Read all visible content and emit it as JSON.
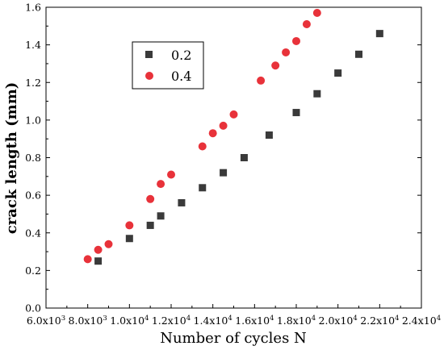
{
  "chart_data": {
    "type": "scatter",
    "xlabel": "Number of cycles N",
    "ylabel": "crack length (mm)",
    "xlim": [
      6000,
      24000
    ],
    "ylim": [
      0,
      1.6
    ],
    "xticks": [
      6000,
      8000,
      10000,
      12000,
      14000,
      16000,
      18000,
      20000,
      22000,
      24000
    ],
    "xtick_labels": [
      {
        "mantissa": "6.0x10",
        "exp": "3"
      },
      {
        "mantissa": "8.0x10",
        "exp": "3"
      },
      {
        "mantissa": "1.0x10",
        "exp": "4"
      },
      {
        "mantissa": "1.2x10",
        "exp": "4"
      },
      {
        "mantissa": "1.4x10",
        "exp": "4"
      },
      {
        "mantissa": "1.6x10",
        "exp": "4"
      },
      {
        "mantissa": "1.8x10",
        "exp": "4"
      },
      {
        "mantissa": "2.0x10",
        "exp": "4"
      },
      {
        "mantissa": "2.2x10",
        "exp": "4"
      },
      {
        "mantissa": "2.4x10",
        "exp": "4"
      }
    ],
    "yticks": [
      0.0,
      0.2,
      0.4,
      0.6,
      0.8,
      1.0,
      1.2,
      1.4,
      1.6
    ],
    "ytick_labels": [
      "0.0",
      "0.2",
      "0.4",
      "0.6",
      "0.8",
      "1.0",
      "1.2",
      "1.4",
      "1.6"
    ],
    "grid": false,
    "legend_position": "upper-left",
    "series": [
      {
        "name": "0.2",
        "marker": "square",
        "color": "#3a3a3a",
        "points": [
          [
            8500,
            0.25
          ],
          [
            10000,
            0.37
          ],
          [
            11000,
            0.44
          ],
          [
            11500,
            0.49
          ],
          [
            12500,
            0.56
          ],
          [
            13500,
            0.64
          ],
          [
            14500,
            0.72
          ],
          [
            15500,
            0.8
          ],
          [
            16700,
            0.92
          ],
          [
            18000,
            1.04
          ],
          [
            19000,
            1.14
          ],
          [
            20000,
            1.25
          ],
          [
            21000,
            1.35
          ],
          [
            22000,
            1.46
          ]
        ]
      },
      {
        "name": "0.4",
        "marker": "circle",
        "color": "#e8323a",
        "points": [
          [
            8000,
            0.26
          ],
          [
            8500,
            0.31
          ],
          [
            9000,
            0.34
          ],
          [
            10000,
            0.44
          ],
          [
            11000,
            0.58
          ],
          [
            11500,
            0.66
          ],
          [
            12000,
            0.71
          ],
          [
            13500,
            0.86
          ],
          [
            14000,
            0.93
          ],
          [
            14500,
            0.97
          ],
          [
            15000,
            1.03
          ],
          [
            16300,
            1.21
          ],
          [
            17000,
            1.29
          ],
          [
            17500,
            1.36
          ],
          [
            18000,
            1.42
          ],
          [
            18500,
            1.51
          ],
          [
            19000,
            1.57
          ]
        ]
      }
    ]
  }
}
